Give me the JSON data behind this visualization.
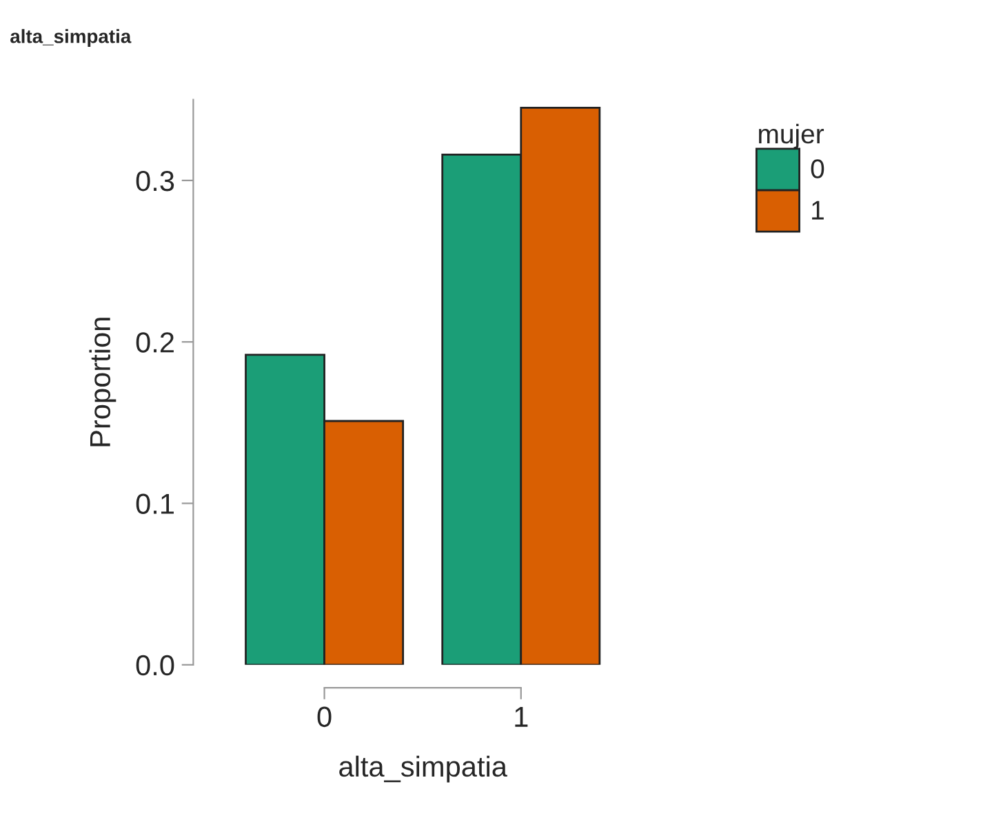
{
  "chart_data": {
    "type": "bar",
    "title": "alta_simpatia",
    "xlabel": "alta_simpatia",
    "ylabel": "Proportion",
    "legend_title": "mujer",
    "categories": [
      "0",
      "1"
    ],
    "series": [
      {
        "name": "0",
        "color": "#1b9e77",
        "values": [
          0.192,
          0.316
        ]
      },
      {
        "name": "1",
        "color": "#d95f02",
        "values": [
          0.151,
          0.345
        ]
      }
    ],
    "ylim": [
      0,
      0.35
    ],
    "yticks": [
      {
        "value": 0,
        "label": "0.0"
      },
      {
        "value": 0.1,
        "label": "0.1"
      },
      {
        "value": 0.2,
        "label": "0.2"
      },
      {
        "value": 0.3,
        "label": "0.3"
      }
    ],
    "grid": false,
    "legend": "top right"
  }
}
